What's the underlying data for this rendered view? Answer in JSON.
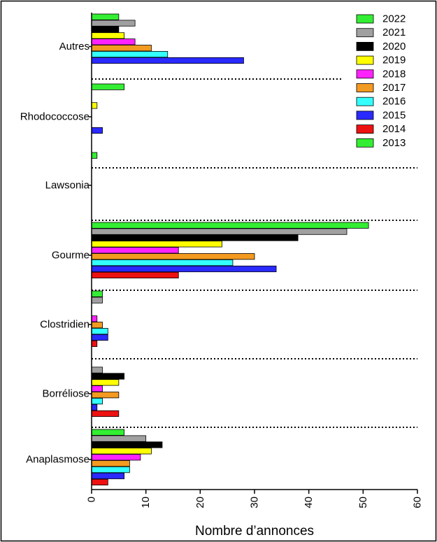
{
  "chart_data": {
    "type": "bar",
    "orientation": "horizontal",
    "xlabel": "Nombre d’annonces",
    "xlim": [
      0,
      60
    ],
    "xticks": [
      "0",
      "10",
      "20",
      "30",
      "40",
      "50",
      "60"
    ],
    "grid": false,
    "group_separators": "dotted",
    "legend_position": "top-right",
    "categories": [
      "Autres",
      "Rhodococcose",
      "Lawsonia",
      "Gourme",
      "Clostridien",
      "Borréliose",
      "Anaplasmose"
    ],
    "series": [
      {
        "name": "2022",
        "color": "#33ee33",
        "values": [
          5,
          6,
          1,
          51,
          2,
          0,
          6
        ]
      },
      {
        "name": "2021",
        "color": "#a0a0a0",
        "values": [
          8,
          0,
          0,
          47,
          2,
          2,
          10
        ]
      },
      {
        "name": "2020",
        "color": "#000000",
        "values": [
          5,
          0,
          0,
          38,
          0,
          6,
          13
        ]
      },
      {
        "name": "2019",
        "color": "#ffff00",
        "values": [
          6,
          1,
          0,
          24,
          0,
          5,
          11
        ]
      },
      {
        "name": "2018",
        "color": "#ff22ff",
        "values": [
          8,
          0,
          0,
          16,
          1,
          2,
          9
        ]
      },
      {
        "name": "2017",
        "color": "#f39a20",
        "values": [
          11,
          0,
          0,
          30,
          2,
          5,
          7
        ]
      },
      {
        "name": "2016",
        "color": "#33ffff",
        "values": [
          14,
          0,
          0,
          26,
          3,
          2,
          7
        ]
      },
      {
        "name": "2015",
        "color": "#2a2aff",
        "values": [
          28,
          2,
          0,
          34,
          3,
          1,
          6
        ]
      },
      {
        "name": "2014",
        "color": "#ee1111",
        "values": [
          0,
          0,
          0,
          16,
          1,
          5,
          3
        ]
      },
      {
        "name": "2013",
        "color": "#33ee33",
        "values": [
          0,
          0,
          0,
          0,
          0,
          0,
          0
        ]
      }
    ]
  }
}
